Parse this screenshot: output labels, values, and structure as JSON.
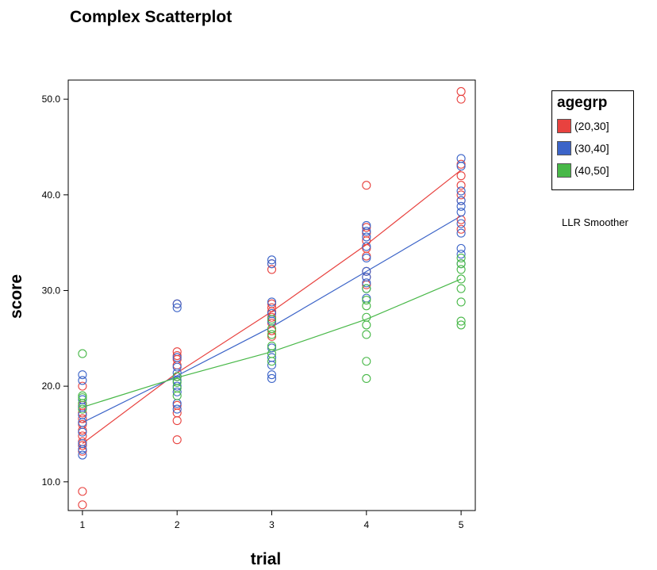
{
  "chart_data": {
    "type": "scatter",
    "title": "Complex Scatterplot",
    "xlabel": "trial",
    "ylabel": "score",
    "xlim": [
      0.85,
      5.15
    ],
    "ylim": [
      7,
      52
    ],
    "x_ticks": [
      1,
      2,
      3,
      4,
      5
    ],
    "x_tick_labels": [
      "1",
      "2",
      "3",
      "4",
      "5"
    ],
    "y_ticks": [
      10,
      20,
      30,
      40,
      50
    ],
    "y_tick_labels": [
      "10.0",
      "20.0",
      "30.0",
      "40.0",
      "50.0"
    ],
    "grid": false,
    "legend": {
      "title": "agegrp",
      "placement": "right",
      "entries": [
        "(20,30]",
        "(30,40]",
        "(40,50]"
      ]
    },
    "annotation": "LLR Smoother",
    "series": [
      {
        "name": "(20,30]",
        "color": "#e8423f",
        "points": [
          [
            1,
            7.6
          ],
          [
            1,
            9.0
          ],
          [
            1,
            13.2
          ],
          [
            1,
            13.8
          ],
          [
            1,
            14.2
          ],
          [
            1,
            14.8
          ],
          [
            1,
            15.4
          ],
          [
            1,
            16.0
          ],
          [
            1,
            16.6
          ],
          [
            1,
            17.2
          ],
          [
            1,
            18.0
          ],
          [
            1,
            20.0
          ],
          [
            2,
            14.4
          ],
          [
            2,
            16.4
          ],
          [
            2,
            17.2
          ],
          [
            2,
            18.0
          ],
          [
            2,
            21.0
          ],
          [
            2,
            22.2
          ],
          [
            2,
            22.8
          ],
          [
            2,
            23.2
          ],
          [
            2,
            23.6
          ],
          [
            2,
            28.6
          ],
          [
            3,
            25.2
          ],
          [
            3,
            25.8
          ],
          [
            3,
            26.6
          ],
          [
            3,
            27.2
          ],
          [
            3,
            27.8
          ],
          [
            3,
            28.2
          ],
          [
            3,
            28.6
          ],
          [
            3,
            32.2
          ],
          [
            3,
            32.8
          ],
          [
            4,
            30.6
          ],
          [
            4,
            31.4
          ],
          [
            4,
            32.0
          ],
          [
            4,
            33.6
          ],
          [
            4,
            34.4
          ],
          [
            4,
            35.2
          ],
          [
            4,
            36.0
          ],
          [
            4,
            36.6
          ],
          [
            4,
            41.0
          ],
          [
            5,
            36.4
          ],
          [
            5,
            37.4
          ],
          [
            5,
            39.4
          ],
          [
            5,
            40.0
          ],
          [
            5,
            41.0
          ],
          [
            5,
            42.0
          ],
          [
            5,
            43.2
          ],
          [
            5,
            50.0
          ],
          [
            5,
            50.8
          ]
        ],
        "smoother": [
          [
            1,
            14.0
          ],
          [
            2,
            21.4
          ],
          [
            3,
            27.8
          ],
          [
            4,
            34.8
          ],
          [
            5,
            42.6
          ]
        ]
      },
      {
        "name": "(30,40]",
        "color": "#3c64c8",
        "points": [
          [
            1,
            12.8
          ],
          [
            1,
            13.4
          ],
          [
            1,
            14.0
          ],
          [
            1,
            15.2
          ],
          [
            1,
            16.2
          ],
          [
            1,
            17.0
          ],
          [
            1,
            17.8
          ],
          [
            1,
            18.6
          ],
          [
            1,
            20.6
          ],
          [
            1,
            21.2
          ],
          [
            2,
            17.6
          ],
          [
            2,
            18.2
          ],
          [
            2,
            19.4
          ],
          [
            2,
            20.0
          ],
          [
            2,
            20.6
          ],
          [
            2,
            21.0
          ],
          [
            2,
            21.4
          ],
          [
            2,
            22.0
          ],
          [
            2,
            23.0
          ],
          [
            2,
            28.2
          ],
          [
            2,
            28.6
          ],
          [
            3,
            20.8
          ],
          [
            3,
            21.2
          ],
          [
            3,
            22.2
          ],
          [
            3,
            23.0
          ],
          [
            3,
            24.0
          ],
          [
            3,
            26.8
          ],
          [
            3,
            27.6
          ],
          [
            3,
            28.8
          ],
          [
            3,
            32.8
          ],
          [
            3,
            33.2
          ],
          [
            4,
            29.2
          ],
          [
            4,
            30.2
          ],
          [
            4,
            30.8
          ],
          [
            4,
            31.4
          ],
          [
            4,
            32.0
          ],
          [
            4,
            33.4
          ],
          [
            4,
            34.6
          ],
          [
            4,
            35.6
          ],
          [
            4,
            36.2
          ],
          [
            4,
            36.8
          ],
          [
            5,
            32.8
          ],
          [
            5,
            33.8
          ],
          [
            5,
            34.4
          ],
          [
            5,
            36.0
          ],
          [
            5,
            37.0
          ],
          [
            5,
            38.2
          ],
          [
            5,
            38.8
          ],
          [
            5,
            39.4
          ],
          [
            5,
            40.4
          ],
          [
            5,
            43.0
          ],
          [
            5,
            43.8
          ]
        ],
        "smoother": [
          [
            1,
            16.2
          ],
          [
            2,
            21.1
          ],
          [
            3,
            26.2
          ],
          [
            4,
            32.0
          ],
          [
            5,
            37.8
          ]
        ]
      },
      {
        "name": "(40,50]",
        "color": "#48b848",
        "points": [
          [
            1,
            17.6
          ],
          [
            1,
            18.2
          ],
          [
            1,
            18.8
          ],
          [
            1,
            19.0
          ],
          [
            1,
            23.4
          ],
          [
            2,
            19.0
          ],
          [
            2,
            19.8
          ],
          [
            2,
            20.4
          ],
          [
            2,
            21.0
          ],
          [
            3,
            22.6
          ],
          [
            3,
            23.4
          ],
          [
            3,
            24.2
          ],
          [
            3,
            25.4
          ],
          [
            3,
            26.0
          ],
          [
            3,
            27.0
          ],
          [
            4,
            20.8
          ],
          [
            4,
            22.6
          ],
          [
            4,
            25.4
          ],
          [
            4,
            26.4
          ],
          [
            4,
            27.2
          ],
          [
            4,
            28.4
          ],
          [
            4,
            29.0
          ],
          [
            4,
            30.2
          ],
          [
            5,
            26.4
          ],
          [
            5,
            26.8
          ],
          [
            5,
            28.8
          ],
          [
            5,
            30.2
          ],
          [
            5,
            31.2
          ],
          [
            5,
            32.2
          ],
          [
            5,
            32.8
          ],
          [
            5,
            33.4
          ]
        ],
        "smoother": [
          [
            1,
            17.8
          ],
          [
            2,
            20.9
          ],
          [
            3,
            23.6
          ],
          [
            4,
            27.0
          ],
          [
            5,
            31.2
          ]
        ]
      }
    ]
  }
}
